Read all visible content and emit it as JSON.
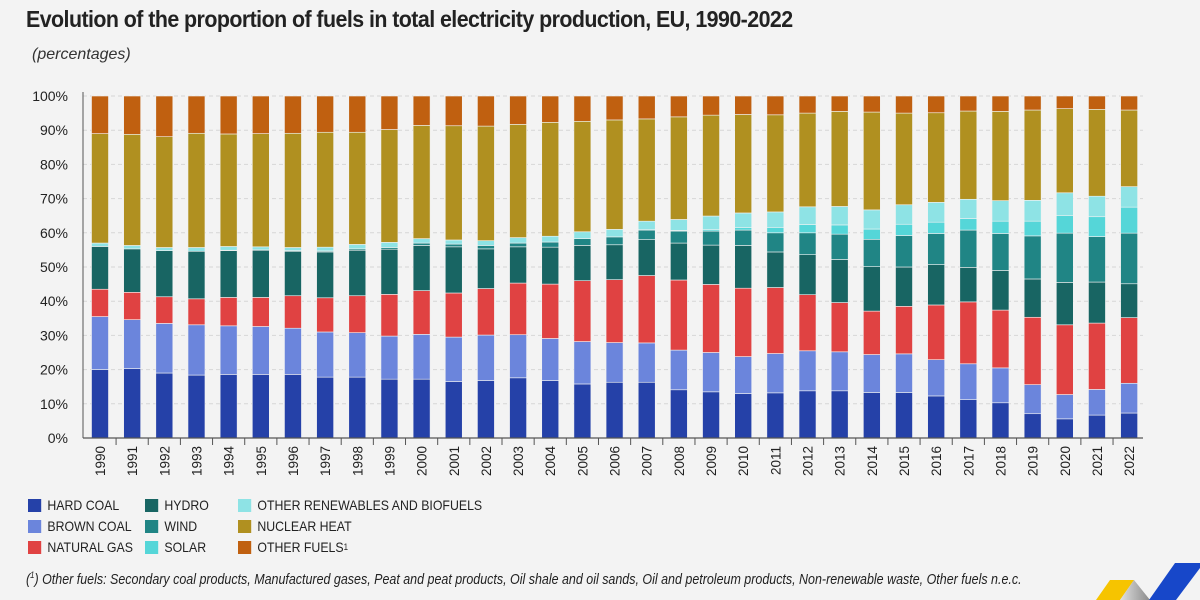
{
  "title": "Evolution of the proportion of fuels in total electricity production, EU, 1990-2022",
  "subtitle": "(percentages)",
  "footnote": {
    "marker": "(",
    "sup": "1",
    "close": ")",
    "text": " Other fuels: Secondary coal products, Manufactured gases, Peat and peat products, Oil shale and oil sands, Oil and petroleum products, Non-renewable waste, Other fuels n.e.c."
  },
  "chart_data": {
    "type": "bar",
    "stacked": true,
    "title": "Evolution of the proportion of fuels in total electricity production, EU, 1990-2022",
    "ylabel": "percentages",
    "ylim": [
      0,
      100
    ],
    "yticks": [
      "0%",
      "10%",
      "20%",
      "30%",
      "40%",
      "50%",
      "60%",
      "70%",
      "80%",
      "90%",
      "100%"
    ],
    "grid": true,
    "legend_position": "bottom-left",
    "categories": [
      "1990",
      "1991",
      "1992",
      "1993",
      "1994",
      "1995",
      "1996",
      "1997",
      "1998",
      "1999",
      "2000",
      "2001",
      "2002",
      "2003",
      "2004",
      "2005",
      "2006",
      "2007",
      "2008",
      "2009",
      "2010",
      "2011",
      "2012",
      "2013",
      "2014",
      "2015",
      "2016",
      "2017",
      "2018",
      "2019",
      "2020",
      "2021",
      "2022"
    ],
    "series": [
      {
        "name": "HARD COAL",
        "color": "#2541a8",
        "values": [
          20,
          20.3,
          19,
          18.4,
          18.6,
          18.6,
          18.6,
          17.8,
          17.8,
          17.2,
          17.2,
          16.5,
          16.8,
          17.6,
          16.8,
          15.8,
          16.3,
          16.3,
          14.1,
          13.5,
          13,
          13.2,
          13.8,
          13.8,
          13.3,
          13.3,
          12.3,
          11.2,
          10.3,
          7.1,
          5.6,
          6.7,
          7.3
        ]
      },
      {
        "name": "BROWN COAL",
        "color": "#6b85dc",
        "values": [
          15.5,
          14.3,
          14.5,
          14.7,
          14.2,
          14,
          13.5,
          13.2,
          13,
          12.6,
          13.1,
          13,
          13.3,
          12.6,
          12.3,
          12.4,
          11.6,
          11.5,
          11.6,
          11.5,
          10.8,
          11.5,
          11.7,
          11.4,
          11.1,
          11.3,
          10.6,
          10.5,
          10.2,
          8.5,
          7.1,
          7.5,
          8.7
        ]
      },
      {
        "name": "NATURAL GAS",
        "color": "#e04242",
        "values": [
          8,
          8,
          7.8,
          7.6,
          8.3,
          8.5,
          9.5,
          10,
          10.8,
          12.2,
          12.8,
          12.9,
          13.6,
          15.1,
          15.9,
          17.8,
          18.4,
          19.7,
          20.5,
          19.9,
          20,
          19.3,
          16.4,
          14.4,
          12.7,
          13.9,
          16,
          18.1,
          16.9,
          19.7,
          20.4,
          19.4,
          19.2
        ]
      },
      {
        "name": "HYDRO",
        "color": "#186563",
        "values": [
          12.5,
          12.7,
          13.5,
          13.9,
          13.7,
          13.8,
          13,
          13.4,
          13.3,
          13.2,
          13.2,
          13.5,
          11.6,
          10.6,
          10.8,
          10.3,
          10.2,
          10.5,
          10.8,
          11.5,
          12.5,
          10.4,
          11.7,
          12.6,
          13,
          11.5,
          11.8,
          10.1,
          11.6,
          11.2,
          12.4,
          12,
          9.9
        ]
      },
      {
        "name": "WIND",
        "color": "#208585",
        "values": [
          0,
          0,
          0,
          0,
          0.1,
          0.1,
          0.2,
          0.3,
          0.4,
          0.5,
          0.7,
          0.8,
          1,
          1.1,
          1.5,
          2,
          2.3,
          2.8,
          3.5,
          4.1,
          4.5,
          5.6,
          6.4,
          7.4,
          8,
          9.2,
          9.1,
          10.9,
          10.8,
          12.6,
          14.4,
          13.3,
          14.8
        ]
      },
      {
        "name": "SOLAR",
        "color": "#55d6d8",
        "values": [
          0,
          0,
          0,
          0,
          0,
          0,
          0,
          0,
          0,
          0,
          0,
          0,
          0,
          0,
          0,
          0,
          0,
          0.1,
          0.2,
          0.4,
          0.7,
          1.6,
          2.4,
          2.7,
          3,
          3.3,
          3.3,
          3.4,
          3.6,
          4.3,
          5.2,
          5.8,
          7.6
        ]
      },
      {
        "name": "OTHER RENEWABLES AND BIOFUELS",
        "color": "#8ee3e5",
        "values": [
          1,
          1,
          0.9,
          1.1,
          1.1,
          0.9,
          0.9,
          1.1,
          1.3,
          1.5,
          1.3,
          1.2,
          1.4,
          1.6,
          1.7,
          2,
          2.2,
          2.5,
          3.2,
          4,
          4.3,
          4.5,
          5.2,
          5.4,
          5.6,
          5.7,
          5.8,
          5.6,
          6,
          6.1,
          6.6,
          6,
          6
        ]
      },
      {
        "name": "NUCLEAR HEAT",
        "color": "#b09020",
        "values": [
          32,
          32.5,
          32.4,
          33.4,
          32.9,
          33.1,
          33.4,
          33.6,
          32.8,
          33,
          33.1,
          33.4,
          33.5,
          33.1,
          33.3,
          32.3,
          32,
          29.9,
          30,
          29.5,
          28.8,
          28.4,
          27.4,
          27.8,
          28.6,
          26.8,
          26.2,
          25.8,
          26.1,
          26.4,
          24.6,
          25.4,
          22.4
        ]
      },
      {
        "name": "OTHER FUELS",
        "sup": "1",
        "color": "#c06010",
        "values": [
          11,
          11.2,
          11.9,
          10.9,
          11.1,
          11,
          10.9,
          10.6,
          10.6,
          9.8,
          8.6,
          8.7,
          8.8,
          8.3,
          7.7,
          7.4,
          7,
          6.7,
          6.1,
          5.6,
          5.4,
          5.5,
          5,
          4.5,
          4.7,
          5,
          4.9,
          4.4,
          4.5,
          4.1,
          3.7,
          3.9,
          4.1
        ]
      }
    ]
  }
}
